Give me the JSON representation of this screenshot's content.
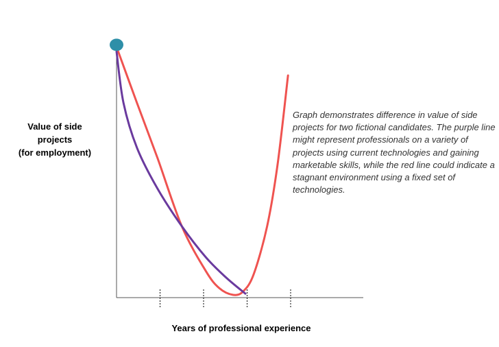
{
  "chart_data": {
    "type": "line",
    "xlabel": "Years of professional experience",
    "ylabel": [
      "Value of side",
      "projects",
      "(for employment)"
    ],
    "xlim": [
      0,
      5.7
    ],
    "ylim": [
      0,
      10
    ],
    "x_ticks": [
      1,
      2,
      3,
      4
    ],
    "x_tick_labels": [],
    "grid": false,
    "start_marker": {
      "x": 0,
      "y": 10.1,
      "color": "#2e8fa8"
    },
    "series": [
      {
        "color": "#ef5350",
        "points": [
          [
            0.03,
            9.9
          ],
          [
            0.47,
            7.8
          ],
          [
            0.94,
            5.6
          ],
          [
            1.5,
            2.86
          ],
          [
            2.05,
            1.07
          ],
          [
            2.36,
            0.38
          ],
          [
            2.68,
            0.11
          ],
          [
            2.91,
            0.25
          ],
          [
            3.15,
            0.93
          ],
          [
            3.46,
            2.86
          ],
          [
            3.7,
            5.33
          ],
          [
            3.94,
            8.9
          ]
        ]
      },
      {
        "color": "#6a3a9e",
        "points": [
          [
            0,
            9.86
          ],
          [
            0.16,
            7.8
          ],
          [
            0.47,
            6.0
          ],
          [
            0.94,
            4.37
          ],
          [
            1.5,
            2.86
          ],
          [
            2.05,
            1.62
          ],
          [
            2.52,
            0.8
          ],
          [
            2.96,
            0.16
          ]
        ]
      }
    ],
    "annotation": "Graph demonstrates difference in value of side projects for two fictional candidates. The purple line might represent professionals on a variety of projects using current technologies and gaining marketable skills, while the red line could indicate a stagnant environment using a fixed set of technologies."
  }
}
